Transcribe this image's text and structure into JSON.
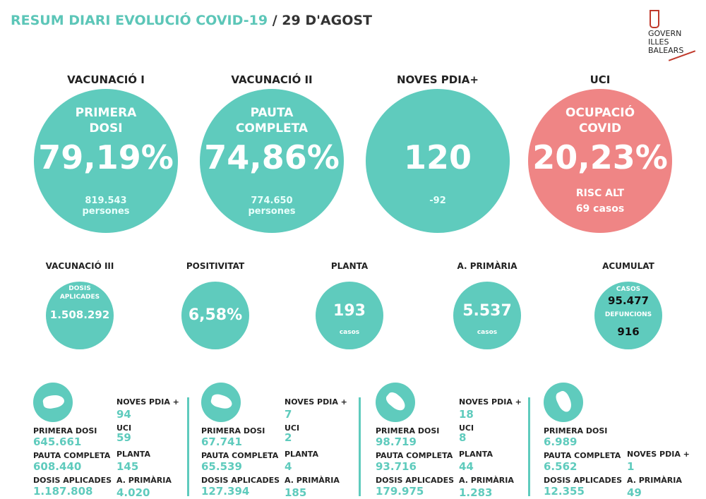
{
  "header": {
    "title": "RESUM DIARI EVOLUCIÓ COVID-19",
    "separator": "/",
    "date": "29 D'AGOST"
  },
  "logo": {
    "lines": [
      "GOVERN",
      "ILLES",
      "BALEARS"
    ]
  },
  "big_circles": [
    {
      "heading": "VACUNACIÓ I",
      "label": [
        "PRIMERA",
        "DOSI"
      ],
      "value": "79,19%",
      "sub": [
        "819.543",
        "persones"
      ]
    },
    {
      "heading": "VACUNACIÓ II",
      "label": [
        "PAUTA",
        "COMPLETA"
      ],
      "value": "74,86%",
      "sub": [
        "774.650",
        "persones"
      ]
    },
    {
      "heading": "NOVES PDIA+",
      "label": [],
      "value": "120",
      "sub": [
        "-92"
      ]
    },
    {
      "heading": "UCI",
      "label": [
        "OCUPACIÓ",
        "COVID"
      ],
      "value": "20,23%",
      "sub": [
        "RISC ALT",
        "69 casos"
      ]
    }
  ],
  "small_circles": [
    {
      "heading": "VACUNACIÓ III",
      "label": [
        "DOSIS",
        "APLICADES"
      ],
      "value": "1.508.292",
      "sub": []
    },
    {
      "heading": "POSITIVITAT",
      "label": [],
      "value": "6,58%",
      "sub": []
    },
    {
      "heading": "PLANTA",
      "label": [],
      "value": "193",
      "sub": [
        "casos"
      ]
    },
    {
      "heading": "A. PRIMÀRIA",
      "label": [],
      "value": "5.537",
      "sub": [
        "casos"
      ]
    }
  ],
  "accumulated": {
    "heading": "ACUMULAT",
    "cases_label": "CASOS",
    "cases": "95.477",
    "deaths_label": "DEFUNCIONS",
    "deaths": "916"
  },
  "islands": [
    {
      "left": [
        [
          "PRIMERA DOSI",
          "645.661"
        ],
        [
          "PAUTA COMPLETA",
          "608.440"
        ],
        [
          "DOSIS APLICADES",
          "1.187.808"
        ]
      ],
      "right": [
        [
          "NOVES PDIA +",
          "94"
        ],
        [
          "UCI",
          "59"
        ],
        [
          "PLANTA",
          "145"
        ],
        [
          "A. PRIMÀRIA",
          "4.020"
        ]
      ]
    },
    {
      "left": [
        [
          "PRIMERA DOSI",
          "67.741"
        ],
        [
          "PAUTA COMPLETA",
          "65.539"
        ],
        [
          "DOSIS APLICADES",
          "127.394"
        ]
      ],
      "right": [
        [
          "NOVES PDIA +",
          "7"
        ],
        [
          "UCI",
          "2"
        ],
        [
          "PLANTA",
          "4"
        ],
        [
          "A. PRIMÀRIA",
          "185"
        ]
      ]
    },
    {
      "left": [
        [
          "PRIMERA DOSI",
          "98.719"
        ],
        [
          "PAUTA COMPLETA",
          "93.716"
        ],
        [
          "DOSIS APLICADES",
          "179.975"
        ]
      ],
      "right": [
        [
          "NOVES PDIA +",
          "18"
        ],
        [
          "UCI",
          "8"
        ],
        [
          "PLANTA",
          "44"
        ],
        [
          "A. PRIMÀRIA",
          "1.283"
        ]
      ]
    },
    {
      "left": [
        [
          "PRIMERA DOSI",
          "6.989"
        ],
        [
          "PAUTA COMPLETA",
          "6.562"
        ],
        [
          "DOSIS APLICADES",
          "12.355"
        ]
      ],
      "right": [
        [
          "NOVES PDIA +",
          "1"
        ],
        [
          "A. PRIMÀRIA",
          "49"
        ]
      ]
    }
  ]
}
